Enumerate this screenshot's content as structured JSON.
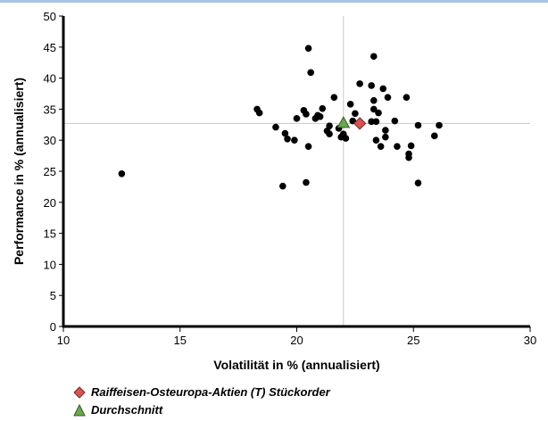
{
  "chart_data": {
    "type": "scatter",
    "xlabel": "Volatilität in % (annualisiert)",
    "ylabel": "Performance in % (annualisiert)",
    "xlim": [
      10,
      30
    ],
    "ylim": [
      0,
      50
    ],
    "xticks": [
      10,
      15,
      20,
      25,
      30
    ],
    "yticks": [
      0,
      5,
      10,
      15,
      20,
      25,
      30,
      35,
      40,
      45,
      50
    ],
    "grid": false,
    "reference_lines": {
      "x": 22,
      "y": 32.7,
      "color": "#c8c8c8"
    },
    "series": [
      {
        "marker": "circle",
        "color": "#000000",
        "points": [
          [
            12.5,
            24.6
          ],
          [
            18.3,
            35
          ],
          [
            18.4,
            34.4
          ],
          [
            19.1,
            32.1
          ],
          [
            19.5,
            31.1
          ],
          [
            19.6,
            30.2
          ],
          [
            19.9,
            30
          ],
          [
            20.0,
            33.5
          ],
          [
            19.4,
            22.6
          ],
          [
            20.4,
            23.2
          ],
          [
            20.5,
            44.8
          ],
          [
            20.6,
            40.9
          ],
          [
            20.3,
            34.8
          ],
          [
            20.4,
            34.2
          ],
          [
            20.8,
            33.5
          ],
          [
            20.9,
            34
          ],
          [
            21.0,
            33.8
          ],
          [
            21.1,
            35.1
          ],
          [
            20.5,
            29
          ],
          [
            21.3,
            31.5
          ],
          [
            21.4,
            31
          ],
          [
            21.4,
            32.3
          ],
          [
            21.6,
            36.9
          ],
          [
            21.8,
            31.9
          ],
          [
            21.9,
            30.5
          ],
          [
            22.0,
            31
          ],
          [
            22.1,
            30.3
          ],
          [
            22.3,
            35.8
          ],
          [
            22.5,
            34.3
          ],
          [
            22.7,
            39.1
          ],
          [
            22.4,
            33.1
          ],
          [
            23.2,
            33
          ],
          [
            23.3,
            43.5
          ],
          [
            23.3,
            36.4
          ],
          [
            23.2,
            38.8
          ],
          [
            23.3,
            35
          ],
          [
            23.5,
            34.4
          ],
          [
            23.4,
            33
          ],
          [
            23.4,
            30
          ],
          [
            23.6,
            29
          ],
          [
            23.7,
            38.3
          ],
          [
            23.8,
            31.6
          ],
          [
            23.8,
            30.5
          ],
          [
            23.9,
            36.9
          ],
          [
            24.2,
            33.1
          ],
          [
            24.3,
            29
          ],
          [
            24.7,
            36.9
          ],
          [
            24.8,
            27.8
          ],
          [
            24.8,
            27.2
          ],
          [
            24.9,
            29.1
          ],
          [
            25.2,
            32.4
          ],
          [
            25.2,
            23.1
          ],
          [
            25.9,
            30.7
          ],
          [
            26.1,
            32.4
          ]
        ]
      },
      {
        "name": "Raiffeisen-Osteuropa-Aktien (T) Stückorder",
        "marker": "diamond",
        "color": "#d9534f",
        "points": [
          [
            22.7,
            32.7
          ]
        ]
      },
      {
        "name": "Durchschnitt",
        "marker": "triangle",
        "color": "#6aa84f",
        "points": [
          [
            22.0,
            32.8
          ]
        ]
      }
    ]
  },
  "legend": {
    "items": [
      {
        "label": "Raiffeisen-Osteuropa-Aktien (T) Stückorder",
        "marker": "diamond",
        "color": "#d9534f"
      },
      {
        "label": "Durchschnitt",
        "marker": "triangle",
        "color": "#6aa84f"
      }
    ]
  }
}
